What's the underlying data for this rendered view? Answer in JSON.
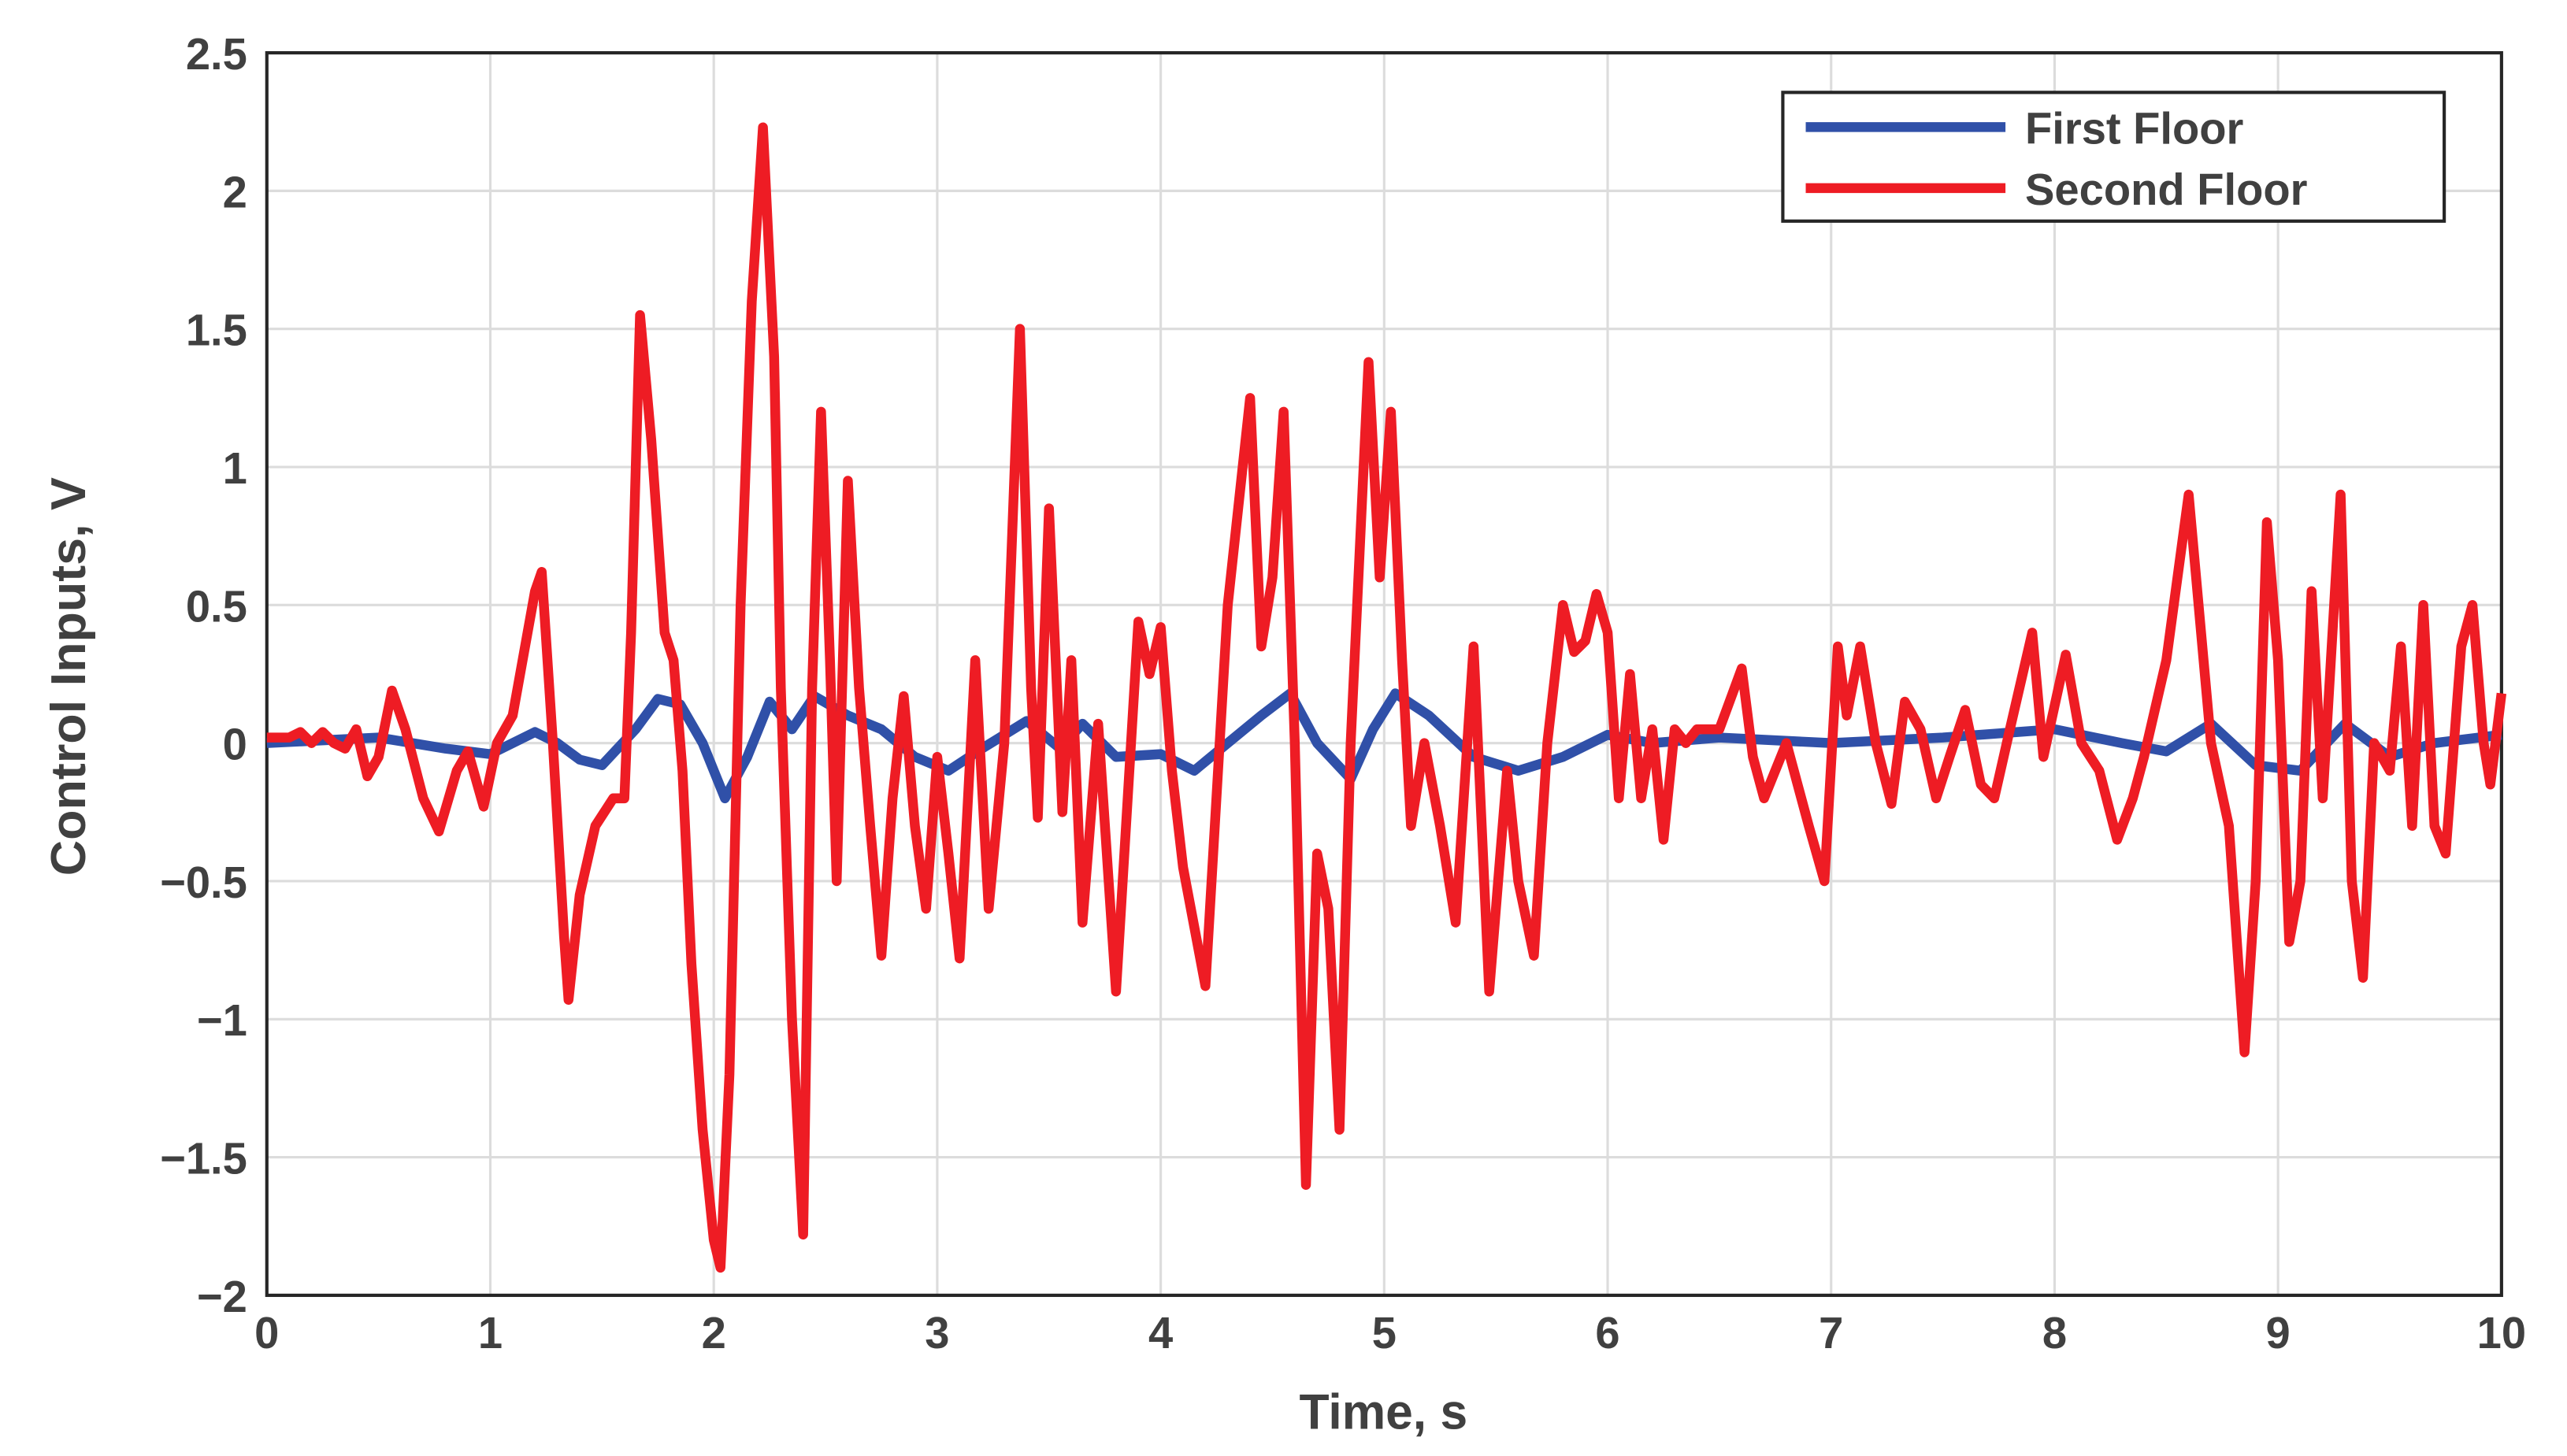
{
  "chart_data": {
    "type": "line",
    "xlabel": "Time, s",
    "ylabel": "Control Inputs, V",
    "xlim": [
      0,
      10
    ],
    "ylim": [
      -2,
      2.5
    ],
    "xticks": [
      0,
      1,
      2,
      3,
      4,
      5,
      6,
      7,
      8,
      9,
      10
    ],
    "yticks": [
      {
        "value": -2,
        "label": "−2"
      },
      {
        "value": -1.5,
        "label": "−1.5"
      },
      {
        "value": -1,
        "label": "−1"
      },
      {
        "value": -0.5,
        "label": "−0.5"
      },
      0,
      0.5,
      1,
      1.5,
      2,
      2.5
    ],
    "grid": true,
    "legend": "upper right",
    "series": [
      {
        "name": "First Floor",
        "color": "#3050a8",
        "x": [
          0,
          0.5,
          0.8,
          1.0,
          1.2,
          1.3,
          1.4,
          1.5,
          1.65,
          1.75,
          1.85,
          1.95,
          2.05,
          2.15,
          2.25,
          2.35,
          2.45,
          2.6,
          2.75,
          2.9,
          3.05,
          3.2,
          3.4,
          3.55,
          3.65,
          3.8,
          4.0,
          4.15,
          4.3,
          4.45,
          4.58,
          4.7,
          4.85,
          4.95,
          5.05,
          5.2,
          5.4,
          5.6,
          5.8,
          6.0,
          6.2,
          6.5,
          7.0,
          7.5,
          8.0,
          8.3,
          8.5,
          8.7,
          8.9,
          9.1,
          9.3,
          9.5,
          9.7,
          10
        ],
        "values": [
          0,
          0.02,
          -0.02,
          -0.04,
          0.04,
          0.0,
          -0.06,
          -0.08,
          0.05,
          0.16,
          0.14,
          0.0,
          -0.2,
          -0.05,
          0.15,
          0.05,
          0.17,
          0.1,
          0.05,
          -0.05,
          -0.1,
          -0.02,
          0.08,
          -0.02,
          0.07,
          -0.05,
          -0.04,
          -0.1,
          0.0,
          0.1,
          0.18,
          0.0,
          -0.13,
          0.05,
          0.18,
          0.1,
          -0.05,
          -0.1,
          -0.05,
          0.03,
          0.0,
          0.02,
          0.0,
          0.02,
          0.05,
          0.0,
          -0.03,
          0.07,
          -0.08,
          -0.1,
          0.07,
          -0.05,
          0.0,
          0.03
        ]
      },
      {
        "name": "Second Floor",
        "color": "#ee1c24",
        "x": [
          0,
          0.1,
          0.15,
          0.2,
          0.25,
          0.3,
          0.35,
          0.4,
          0.45,
          0.5,
          0.56,
          0.62,
          0.7,
          0.77,
          0.85,
          0.9,
          0.97,
          1.03,
          1.1,
          1.2,
          1.23,
          1.28,
          1.33,
          1.35,
          1.4,
          1.47,
          1.55,
          1.6,
          1.63,
          1.67,
          1.72,
          1.78,
          1.82,
          1.86,
          1.9,
          1.95,
          2.0,
          2.03,
          2.07,
          2.12,
          2.17,
          2.22,
          2.27,
          2.3,
          2.35,
          2.4,
          2.44,
          2.48,
          2.52,
          2.55,
          2.6,
          2.65,
          2.7,
          2.75,
          2.8,
          2.85,
          2.9,
          2.95,
          3.0,
          3.05,
          3.1,
          3.17,
          3.23,
          3.3,
          3.37,
          3.42,
          3.45,
          3.5,
          3.56,
          3.6,
          3.65,
          3.72,
          3.8,
          3.9,
          3.95,
          4.0,
          4.05,
          4.1,
          4.2,
          4.3,
          4.4,
          4.45,
          4.5,
          4.55,
          4.6,
          4.65,
          4.7,
          4.75,
          4.8,
          4.85,
          4.93,
          4.98,
          5.03,
          5.08,
          5.12,
          5.18,
          5.25,
          5.32,
          5.4,
          5.47,
          5.55,
          5.6,
          5.67,
          5.73,
          5.8,
          5.85,
          5.9,
          5.95,
          6.0,
          6.05,
          6.1,
          6.15,
          6.2,
          6.25,
          6.3,
          6.35,
          6.4,
          6.5,
          6.6,
          6.65,
          6.7,
          6.8,
          6.9,
          6.97,
          7.03,
          7.07,
          7.13,
          7.2,
          7.27,
          7.33,
          7.4,
          7.47,
          7.53,
          7.6,
          7.67,
          7.73,
          7.8,
          7.9,
          7.95,
          8.05,
          8.12,
          8.2,
          8.28,
          8.35,
          8.4,
          8.5,
          8.6,
          8.7,
          8.78,
          8.85,
          8.9,
          8.95,
          9.0,
          9.05,
          9.1,
          9.15,
          9.2,
          9.28,
          9.33,
          9.38,
          9.43,
          9.5,
          9.55,
          9.6,
          9.65,
          9.7,
          9.75,
          9.82,
          9.87,
          9.92,
          9.95,
          10.0
        ],
        "values": [
          0.02,
          0.02,
          0.04,
          0.0,
          0.04,
          0.0,
          -0.02,
          0.05,
          -0.12,
          -0.05,
          0.19,
          0.05,
          -0.2,
          -0.32,
          -0.1,
          -0.03,
          -0.23,
          0.0,
          0.1,
          0.55,
          0.62,
          0.0,
          -0.7,
          -0.93,
          -0.55,
          -0.3,
          -0.2,
          -0.2,
          0.4,
          1.55,
          1.1,
          0.4,
          0.3,
          -0.1,
          -0.8,
          -1.4,
          -1.8,
          -1.9,
          -1.2,
          0.5,
          1.6,
          2.23,
          1.4,
          0.2,
          -1.0,
          -1.78,
          0.2,
          1.2,
          0.3,
          -0.5,
          0.95,
          0.2,
          -0.3,
          -0.77,
          -0.2,
          0.17,
          -0.3,
          -0.6,
          -0.05,
          -0.4,
          -0.78,
          0.3,
          -0.6,
          0.0,
          1.5,
          0.2,
          -0.27,
          0.85,
          -0.25,
          0.3,
          -0.65,
          0.07,
          -0.9,
          0.44,
          0.25,
          0.42,
          -0.1,
          -0.45,
          -0.88,
          0.5,
          1.25,
          0.35,
          0.6,
          1.2,
          0.0,
          -1.6,
          -0.4,
          -0.6,
          -1.4,
          0.0,
          1.38,
          0.6,
          1.2,
          0.3,
          -0.3,
          0.0,
          -0.3,
          -0.65,
          0.35,
          -0.9,
          -0.1,
          -0.5,
          -0.77,
          0.0,
          0.5,
          0.33,
          0.37,
          0.54,
          0.4,
          -0.2,
          0.25,
          -0.2,
          0.05,
          -0.35,
          0.05,
          0.0,
          0.05,
          0.05,
          0.27,
          -0.05,
          -0.2,
          0.0,
          -0.3,
          -0.5,
          0.35,
          0.1,
          0.35,
          0.0,
          -0.22,
          0.15,
          0.05,
          -0.2,
          -0.05,
          0.12,
          -0.15,
          -0.2,
          0.05,
          0.4,
          -0.05,
          0.32,
          0.0,
          -0.1,
          -0.35,
          -0.2,
          -0.05,
          0.3,
          0.9,
          0.0,
          -0.3,
          -1.12,
          -0.5,
          0.8,
          0.3,
          -0.72,
          -0.5,
          0.55,
          -0.2,
          0.9,
          -0.5,
          -0.85,
          0.0,
          -0.1,
          0.35,
          -0.3,
          0.5,
          -0.3,
          -0.4,
          0.35,
          0.5,
          0.0,
          -0.15,
          0.18
        ]
      }
    ]
  }
}
